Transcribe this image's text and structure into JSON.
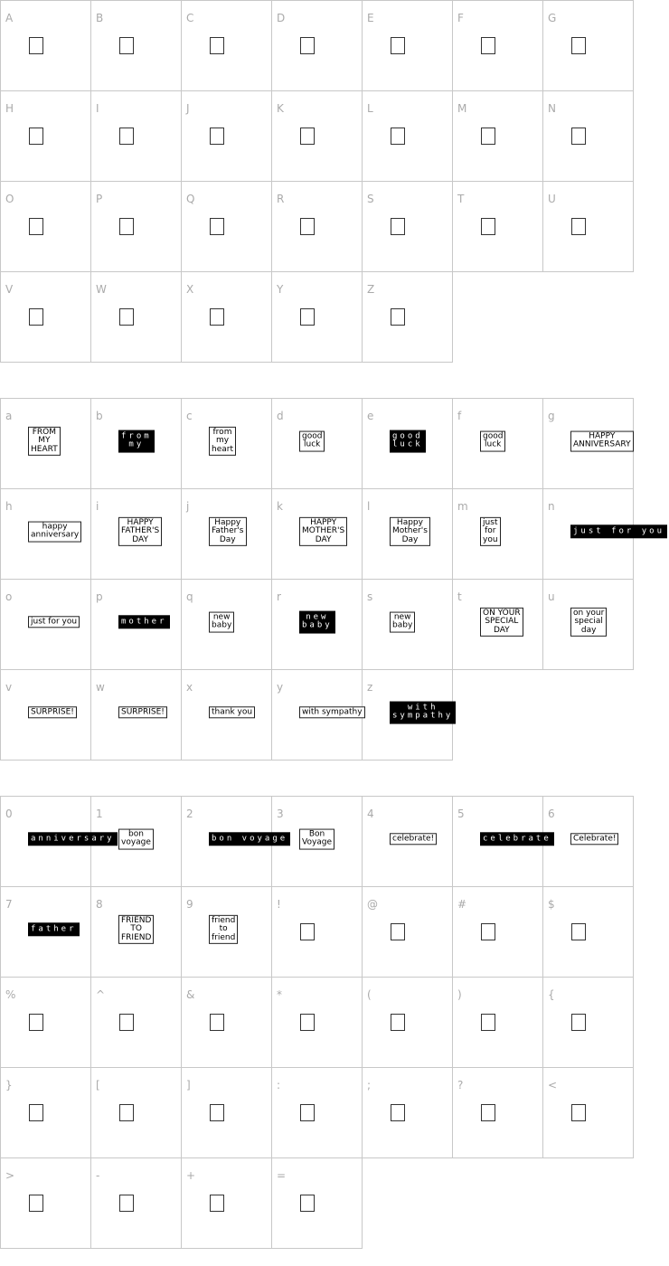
{
  "sections": [
    {
      "cells": [
        {
          "char": "A"
        },
        {
          "char": "B"
        },
        {
          "char": "C"
        },
        {
          "char": "D"
        },
        {
          "char": "E"
        },
        {
          "char": "F"
        },
        {
          "char": "G"
        },
        {
          "char": "H"
        },
        {
          "char": "I"
        },
        {
          "char": "J"
        },
        {
          "char": "K"
        },
        {
          "char": "L"
        },
        {
          "char": "M"
        },
        {
          "char": "N"
        },
        {
          "char": "O"
        },
        {
          "char": "P"
        },
        {
          "char": "Q"
        },
        {
          "char": "R"
        },
        {
          "char": "S"
        },
        {
          "char": "T"
        },
        {
          "char": "U"
        },
        {
          "char": "V"
        },
        {
          "char": "W"
        },
        {
          "char": "X"
        },
        {
          "char": "Y"
        },
        {
          "char": "Z"
        }
      ]
    },
    {
      "cells": [
        {
          "char": "a",
          "glyph": {
            "style": "box",
            "lines": [
              "FROM",
              "MY",
              "HEART"
            ]
          }
        },
        {
          "char": "b",
          "glyph": {
            "style": "inv",
            "lines": [
              "from",
              "my"
            ]
          }
        },
        {
          "char": "c",
          "glyph": {
            "style": "box",
            "lines": [
              "from",
              "my",
              "heart"
            ]
          }
        },
        {
          "char": "d",
          "glyph": {
            "style": "box",
            "lines": [
              "good",
              "luck"
            ]
          }
        },
        {
          "char": "e",
          "glyph": {
            "style": "inv",
            "lines": [
              "good",
              "luck"
            ]
          }
        },
        {
          "char": "f",
          "glyph": {
            "style": "box",
            "lines": [
              "good",
              "luck"
            ]
          }
        },
        {
          "char": "g",
          "glyph": {
            "style": "box",
            "lines": [
              "HAPPY",
              "ANNIVERSARY"
            ]
          }
        },
        {
          "char": "h",
          "glyph": {
            "style": "box",
            "lines": [
              "happy",
              "anniversary"
            ]
          }
        },
        {
          "char": "i",
          "glyph": {
            "style": "box",
            "lines": [
              "HAPPY",
              "FATHER'S",
              "DAY"
            ]
          }
        },
        {
          "char": "j",
          "glyph": {
            "style": "box",
            "lines": [
              "Happy",
              "Father's",
              "Day"
            ]
          }
        },
        {
          "char": "k",
          "glyph": {
            "style": "box",
            "lines": [
              "HAPPY",
              "MOTHER'S",
              "DAY"
            ]
          }
        },
        {
          "char": "l",
          "glyph": {
            "style": "box",
            "lines": [
              "Happy",
              "Mother's",
              "Day"
            ]
          }
        },
        {
          "char": "m",
          "glyph": {
            "style": "box",
            "lines": [
              "just",
              "for",
              "you"
            ]
          }
        },
        {
          "char": "n",
          "glyph": {
            "style": "inv",
            "lines": [
              "just for you"
            ]
          }
        },
        {
          "char": "o",
          "glyph": {
            "style": "box",
            "lines": [
              "just for you"
            ]
          }
        },
        {
          "char": "p",
          "glyph": {
            "style": "inv",
            "lines": [
              "mother"
            ]
          }
        },
        {
          "char": "q",
          "glyph": {
            "style": "box",
            "lines": [
              "new",
              "baby"
            ]
          }
        },
        {
          "char": "r",
          "glyph": {
            "style": "inv",
            "lines": [
              "new",
              "baby"
            ]
          }
        },
        {
          "char": "s",
          "glyph": {
            "style": "box",
            "lines": [
              "new",
              "baby"
            ]
          }
        },
        {
          "char": "t",
          "glyph": {
            "style": "box",
            "lines": [
              "ON YOUR",
              "SPECIAL",
              "DAY"
            ]
          }
        },
        {
          "char": "u",
          "glyph": {
            "style": "box",
            "lines": [
              "on your",
              "special",
              "day"
            ]
          }
        },
        {
          "char": "v",
          "glyph": {
            "style": "box",
            "lines": [
              "SURPRISE!"
            ]
          }
        },
        {
          "char": "w",
          "glyph": {
            "style": "box",
            "lines": [
              "SURPRISE!"
            ]
          }
        },
        {
          "char": "x",
          "glyph": {
            "style": "box",
            "lines": [
              "thank you"
            ]
          }
        },
        {
          "char": "y",
          "glyph": {
            "style": "box",
            "lines": [
              "with sympathy"
            ]
          }
        },
        {
          "char": "z",
          "glyph": {
            "style": "inv",
            "lines": [
              "with",
              "sympathy"
            ]
          }
        }
      ]
    },
    {
      "cells": [
        {
          "char": "0",
          "glyph": {
            "style": "inv",
            "lines": [
              "anniversary"
            ]
          }
        },
        {
          "char": "1",
          "glyph": {
            "style": "box",
            "lines": [
              "bon",
              "voyage"
            ]
          }
        },
        {
          "char": "2",
          "glyph": {
            "style": "inv",
            "lines": [
              "bon voyage"
            ]
          }
        },
        {
          "char": "3",
          "glyph": {
            "style": "box",
            "lines": [
              "Bon",
              "Voyage"
            ]
          }
        },
        {
          "char": "4",
          "glyph": {
            "style": "box",
            "lines": [
              "celebrate!"
            ]
          }
        },
        {
          "char": "5",
          "glyph": {
            "style": "inv",
            "lines": [
              "celebrate"
            ]
          }
        },
        {
          "char": "6",
          "glyph": {
            "style": "box",
            "lines": [
              "Celebrate!"
            ]
          }
        },
        {
          "char": "7",
          "glyph": {
            "style": "inv",
            "lines": [
              "father"
            ]
          }
        },
        {
          "char": "8",
          "glyph": {
            "style": "box",
            "lines": [
              "FRIEND",
              "TO",
              "FRIEND"
            ]
          }
        },
        {
          "char": "9",
          "glyph": {
            "style": "box",
            "lines": [
              "friend",
              "to",
              "friend"
            ]
          }
        },
        {
          "char": "!"
        },
        {
          "char": "@"
        },
        {
          "char": "#"
        },
        {
          "char": "$"
        },
        {
          "char": "%"
        },
        {
          "char": "^"
        },
        {
          "char": "&"
        },
        {
          "char": "*"
        },
        {
          "char": "("
        },
        {
          "char": ")"
        },
        {
          "char": "{"
        },
        {
          "char": "}"
        },
        {
          "char": "["
        },
        {
          "char": "]"
        },
        {
          "char": ":"
        },
        {
          "char": ";"
        },
        {
          "char": "?"
        },
        {
          "char": "<"
        },
        {
          "char": ">"
        },
        {
          "char": "-"
        },
        {
          "char": "+"
        },
        {
          "char": "="
        }
      ]
    }
  ]
}
